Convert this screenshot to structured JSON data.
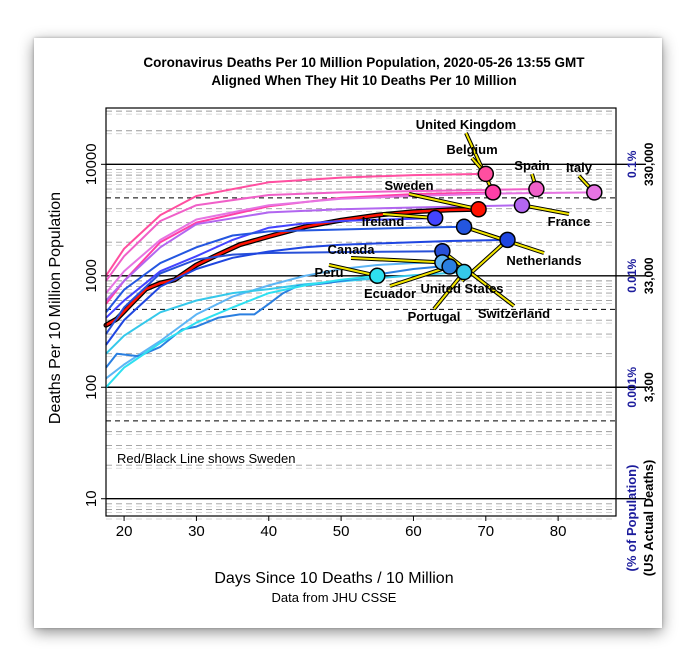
{
  "chart_data": {
    "type": "line",
    "title": "Coronavirus Deaths Per 10 Million Population, 2020-05-26 13:55 GMT",
    "subtitle": "Aligned When They Hit 10 Deaths Per 10 Million",
    "xlabel": "Days Since 10 Deaths / 10 Million",
    "caption": "Data from JHU CSSE",
    "ylabel": "Deaths Per 10 Million Population",
    "y_scale": "log10",
    "xlim": [
      17.5,
      88
    ],
    "ylim": [
      7,
      32000
    ],
    "x_ticks": [
      20,
      30,
      40,
      50,
      60,
      70,
      80
    ],
    "y_ticks": [
      {
        "value": 10,
        "label": "10"
      },
      {
        "value": 100,
        "label": "100"
      },
      {
        "value": 1000,
        "label": "1000"
      },
      {
        "value": 10000,
        "label": "10000"
      }
    ],
    "right_pct_ticks": [
      {
        "value": 10000,
        "label": "0.1%"
      },
      {
        "value": 1000,
        "label": "0.01%"
      },
      {
        "value": 100,
        "label": "0.001%"
      }
    ],
    "right_pct_axis_label": "(% of Population)",
    "right_us_ticks": [
      {
        "value": 10000,
        "label": "330,000"
      },
      {
        "value": 1000,
        "label": "33,000"
      },
      {
        "value": 100,
        "label": "3,300"
      }
    ],
    "right_us_axis_label": "(US Actual Deaths)",
    "annotation": "Red/Black Line shows Sweden",
    "series": [
      {
        "name": "Belgium",
        "color": "#ff4fa0",
        "points": [
          [
            17.5,
            1000
          ],
          [
            20,
            1750
          ],
          [
            25,
            3500
          ],
          [
            30,
            5200
          ],
          [
            40,
            6900
          ],
          [
            50,
            7600
          ],
          [
            60,
            8000
          ],
          [
            70,
            8200
          ]
        ],
        "end": [
          70,
          8200
        ]
      },
      {
        "name": "United Kingdom",
        "color": "#ff3fa8",
        "points": [
          [
            17.5,
            560
          ],
          [
            20,
            900
          ],
          [
            25,
            2000
          ],
          [
            30,
            3000
          ],
          [
            40,
            4200
          ],
          [
            50,
            5000
          ],
          [
            60,
            5400
          ],
          [
            71,
            5600
          ]
        ],
        "end": [
          71,
          5600
        ]
      },
      {
        "name": "Spain",
        "color": "#f060c8",
        "points": [
          [
            17.5,
            900
          ],
          [
            20,
            1500
          ],
          [
            25,
            3100
          ],
          [
            30,
            4300
          ],
          [
            40,
            5300
          ],
          [
            50,
            5600
          ],
          [
            60,
            5750
          ],
          [
            77,
            6000
          ]
        ],
        "end": [
          77,
          6000
        ]
      },
      {
        "name": "Italy",
        "color": "#e674e2",
        "points": [
          [
            17.5,
            700
          ],
          [
            20,
            1100
          ],
          [
            25,
            2100
          ],
          [
            30,
            3200
          ],
          [
            40,
            4300
          ],
          [
            50,
            4900
          ],
          [
            60,
            5200
          ],
          [
            70,
            5450
          ],
          [
            85,
            5600
          ]
        ],
        "end": [
          85,
          5600
        ]
      },
      {
        "name": "France",
        "color": "#b266f0",
        "points": [
          [
            17.5,
            600
          ],
          [
            20,
            900
          ],
          [
            25,
            1800
          ],
          [
            30,
            2900
          ],
          [
            40,
            3700
          ],
          [
            50,
            3950
          ],
          [
            60,
            4100
          ],
          [
            75,
            4300
          ]
        ],
        "end": [
          75,
          4300
        ]
      },
      {
        "name": "Sweden",
        "color": "#ff1100",
        "sweden": true,
        "points": [
          [
            17.5,
            360
          ],
          [
            19,
            410
          ],
          [
            21,
            560
          ],
          [
            23,
            760
          ],
          [
            25,
            860
          ],
          [
            27,
            920
          ],
          [
            30,
            1250
          ],
          [
            33,
            1550
          ],
          [
            36,
            1900
          ],
          [
            40,
            2250
          ],
          [
            45,
            2750
          ],
          [
            50,
            3150
          ],
          [
            55,
            3500
          ],
          [
            60,
            3750
          ],
          [
            65,
            3900
          ],
          [
            69,
            3950
          ]
        ],
        "end": [
          69,
          3950
        ]
      },
      {
        "name": "Ireland",
        "color": "#4444ff",
        "points": [
          [
            17.5,
            420
          ],
          [
            20,
            600
          ],
          [
            25,
            1100
          ],
          [
            30,
            1500
          ],
          [
            35,
            2100
          ],
          [
            40,
            2700
          ],
          [
            45,
            2950
          ],
          [
            50,
            3100
          ],
          [
            55,
            3180
          ],
          [
            60,
            3250
          ],
          [
            63,
            3300
          ]
        ],
        "end": [
          63,
          3300
        ]
      },
      {
        "name": "Netherlands",
        "color": "#2456e0",
        "points": [
          [
            17.5,
            470
          ],
          [
            20,
            750
          ],
          [
            25,
            1300
          ],
          [
            30,
            1800
          ],
          [
            35,
            2300
          ],
          [
            40,
            2500
          ],
          [
            50,
            2600
          ],
          [
            60,
            2700
          ],
          [
            67,
            2750
          ]
        ],
        "end": [
          67,
          2750
        ]
      },
      {
        "name": "Switzerland",
        "color": "#2850d8",
        "points": [
          [
            17.5,
            300
          ],
          [
            20,
            520
          ],
          [
            25,
            1050
          ],
          [
            30,
            1400
          ],
          [
            35,
            1550
          ],
          [
            40,
            1600
          ],
          [
            50,
            1630
          ],
          [
            60,
            1650
          ],
          [
            64,
            1660
          ]
        ],
        "end": [
          64,
          1660
        ]
      },
      {
        "name": "United States",
        "color": "#1f46e0",
        "points": [
          [
            17.5,
            240
          ],
          [
            20,
            400
          ],
          [
            25,
            800
          ],
          [
            30,
            1150
          ],
          [
            35,
            1450
          ],
          [
            40,
            1650
          ],
          [
            45,
            1800
          ],
          [
            50,
            1900
          ],
          [
            60,
            2000
          ],
          [
            65,
            2050
          ],
          [
            73,
            2100
          ]
        ],
        "end": [
          73,
          2100
        ]
      },
      {
        "name": "Canada",
        "color": "#5db5f5",
        "points": [
          [
            17.5,
            120
          ],
          [
            20,
            160
          ],
          [
            25,
            260
          ],
          [
            30,
            450
          ],
          [
            35,
            650
          ],
          [
            40,
            820
          ],
          [
            45,
            1000
          ],
          [
            50,
            1150
          ],
          [
            55,
            1250
          ],
          [
            60,
            1300
          ],
          [
            64,
            1320
          ]
        ],
        "end": [
          64,
          1320
        ]
      },
      {
        "name": "Portugal",
        "color": "#35c8ea",
        "points": [
          [
            17.5,
            200
          ],
          [
            20,
            290
          ],
          [
            25,
            470
          ],
          [
            30,
            600
          ],
          [
            35,
            700
          ],
          [
            40,
            760
          ],
          [
            45,
            840
          ],
          [
            50,
            890
          ],
          [
            55,
            950
          ],
          [
            60,
            1010
          ],
          [
            65,
            1060
          ],
          [
            67,
            1080
          ]
        ],
        "end": [
          67,
          1080
        ]
      },
      {
        "name": "Ecuador",
        "color": "#2a7fe0",
        "points": [
          [
            17.5,
            150
          ],
          [
            19,
            200
          ],
          [
            22,
            190
          ],
          [
            25,
            230
          ],
          [
            28,
            330
          ],
          [
            30,
            350
          ],
          [
            33,
            420
          ],
          [
            36,
            450
          ],
          [
            38,
            450
          ],
          [
            40,
            560
          ],
          [
            42,
            700
          ],
          [
            44,
            810
          ],
          [
            46,
            830
          ],
          [
            48,
            860
          ],
          [
            50,
            900
          ],
          [
            53,
            960
          ],
          [
            56,
            1050
          ],
          [
            60,
            1150
          ],
          [
            63,
            1200
          ],
          [
            65,
            1210
          ]
        ],
        "end": [
          65,
          1210
        ]
      },
      {
        "name": "Peru",
        "color": "#2ee0f0",
        "points": [
          [
            17.5,
            100
          ],
          [
            20,
            150
          ],
          [
            25,
            250
          ],
          [
            30,
            380
          ],
          [
            35,
            520
          ],
          [
            40,
            700
          ],
          [
            45,
            820
          ],
          [
            50,
            920
          ],
          [
            55,
            1000
          ]
        ],
        "end": [
          55,
          1000
        ]
      }
    ],
    "labels": [
      {
        "text": "United Kingdom"
      },
      {
        "text": "Belgium"
      },
      {
        "text": "Spain"
      },
      {
        "text": "Italy"
      },
      {
        "text": "Sweden"
      },
      {
        "text": "France"
      },
      {
        "text": "Ireland"
      },
      {
        "text": "Canada"
      },
      {
        "text": "Netherlands"
      },
      {
        "text": "Peru"
      },
      {
        "text": "United States"
      },
      {
        "text": "Ecuador"
      },
      {
        "text": "Switzerland"
      },
      {
        "text": "Portugal"
      }
    ]
  }
}
